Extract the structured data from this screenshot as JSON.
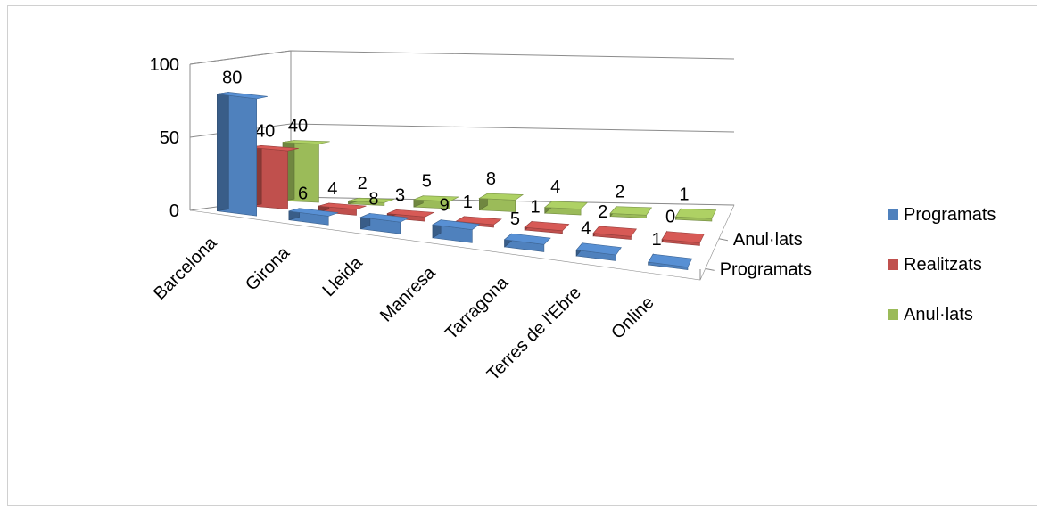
{
  "chart_data": {
    "type": "bar",
    "variant": "3d-column",
    "title": "",
    "categories": [
      "Barcelona",
      "Girona",
      "Lleida",
      "Manresa",
      "Tarragona",
      "Terres de l'Ebre",
      "Online"
    ],
    "series": [
      {
        "name": "Programats",
        "values": [
          80,
          6,
          8,
          9,
          5,
          4,
          1
        ],
        "color": "#4f81bd"
      },
      {
        "name": "Realitzats",
        "values": [
          40,
          4,
          3,
          1,
          1,
          2,
          0
        ],
        "color": "#c0504d"
      },
      {
        "name": "Anul·lats",
        "values": [
          40,
          2,
          5,
          8,
          4,
          2,
          1
        ],
        "color": "#9bbb59"
      }
    ],
    "depth_labels": [
      "Anul·lats",
      "Programats"
    ],
    "y_ticks": [
      "0",
      "50",
      "100"
    ],
    "ylim": [
      0,
      100
    ],
    "legend": "right",
    "grid": true
  }
}
